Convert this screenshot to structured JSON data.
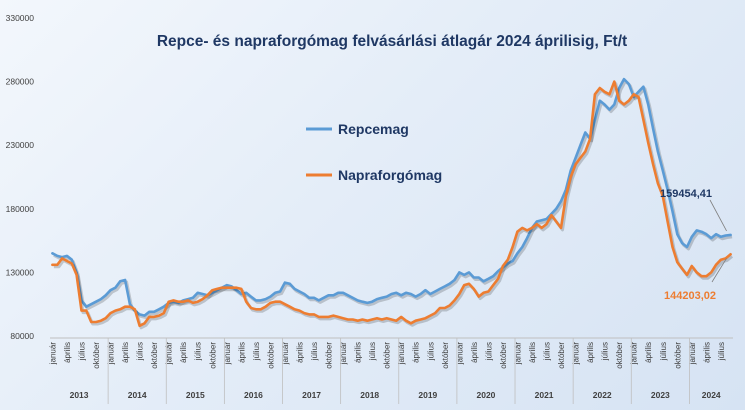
{
  "chart_data": {
    "type": "line",
    "title": "Repce- és napraforgómag felvásárlási átlagár 2024 áprilisig, Ft/t",
    "xlabel": "",
    "ylabel": "",
    "ylim": [
      80000,
      330000
    ],
    "yticks": [
      "80000",
      "130000",
      "180000",
      "230000",
      "280000",
      "330000"
    ],
    "month_labels": [
      "január",
      "április",
      "július",
      "október"
    ],
    "years": [
      "2013",
      "2014",
      "2015",
      "2016",
      "2017",
      "2018",
      "2019",
      "2020",
      "2021",
      "2022",
      "2023",
      "2024"
    ],
    "x_start": "2013-01",
    "x_end": "2024-04",
    "grid": false,
    "legend_position": "upper-left (inside plot)",
    "series": [
      {
        "name": "Repcemag",
        "color": "#5b9bd5",
        "end_label": "159454,41",
        "values": [
          145000,
          143000,
          142000,
          143000,
          140000,
          130000,
          108000,
          103000,
          105000,
          107000,
          109000,
          112000,
          116000,
          118000,
          123000,
          124000,
          105000,
          100000,
          97000,
          96000,
          99000,
          99000,
          101000,
          103000,
          106000,
          107000,
          106000,
          108000,
          109000,
          110000,
          114000,
          113000,
          112000,
          114000,
          116000,
          118000,
          120000,
          119000,
          116000,
          113000,
          114000,
          111000,
          108000,
          108000,
          109000,
          111000,
          114000,
          115000,
          122000,
          121000,
          117000,
          115000,
          113000,
          110000,
          110000,
          108000,
          110000,
          112000,
          112000,
          114000,
          114000,
          112000,
          110000,
          108000,
          107000,
          106000,
          107000,
          109000,
          110000,
          111000,
          113000,
          114000,
          112000,
          114000,
          113000,
          111000,
          113000,
          116000,
          113000,
          115000,
          117000,
          119000,
          121000,
          124000,
          130000,
          128000,
          130000,
          126000,
          126000,
          123000,
          125000,
          127000,
          131000,
          134000,
          137000,
          139000,
          145000,
          150000,
          157000,
          165000,
          170000,
          171000,
          172000,
          176000,
          180000,
          186000,
          195000,
          210000,
          220000,
          230000,
          240000,
          235000,
          250000,
          265000,
          262000,
          258000,
          262000,
          275000,
          282000,
          278000,
          268000,
          272000,
          276000,
          262000,
          243000,
          225000,
          210000,
          195000,
          178000,
          160000,
          153000,
          150000,
          158000,
          163000,
          162000,
          160000,
          157000,
          160000,
          158000,
          159000,
          159454
        ]
      },
      {
        "name": "Napraforgómag",
        "color": "#ed7d31",
        "end_label": "144203,02",
        "values": [
          136000,
          136000,
          141000,
          139000,
          137000,
          128000,
          100000,
          100000,
          91000,
          91000,
          92000,
          94000,
          98000,
          100000,
          101000,
          103000,
          103000,
          101000,
          88000,
          90000,
          95000,
          95000,
          96000,
          98000,
          107000,
          108000,
          107000,
          107000,
          108000,
          106000,
          107000,
          109000,
          112000,
          116000,
          117000,
          118000,
          118000,
          118000,
          118000,
          117000,
          107000,
          102000,
          101000,
          101000,
          103000,
          106000,
          107000,
          107000,
          105000,
          103000,
          101000,
          100000,
          98000,
          97000,
          97000,
          95000,
          95000,
          95000,
          96000,
          95000,
          94000,
          93000,
          93000,
          92000,
          93000,
          92000,
          93000,
          94000,
          93000,
          94000,
          93000,
          92000,
          95000,
          92000,
          90000,
          92000,
          93000,
          94000,
          96000,
          98000,
          102000,
          102000,
          104000,
          108000,
          113000,
          120000,
          121000,
          117000,
          111000,
          114000,
          115000,
          120000,
          125000,
          135000,
          140000,
          150000,
          162000,
          165000,
          163000,
          165000,
          168000,
          165000,
          168000,
          175000,
          170000,
          165000,
          190000,
          205000,
          215000,
          220000,
          225000,
          235000,
          270000,
          275000,
          272000,
          270000,
          280000,
          265000,
          262000,
          265000,
          270000,
          268000,
          250000,
          232000,
          215000,
          200000,
          190000,
          170000,
          150000,
          138000,
          133000,
          128000,
          135000,
          130000,
          127000,
          127000,
          130000,
          136000,
          140000,
          141000,
          144203
        ]
      }
    ]
  }
}
